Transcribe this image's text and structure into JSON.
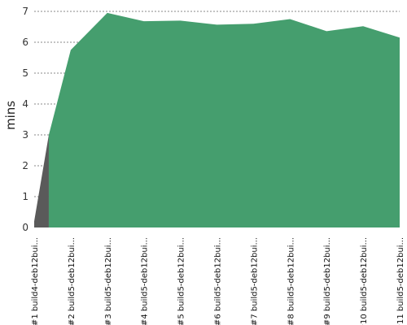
{
  "chart_data": {
    "type": "area",
    "ylabel": "mins",
    "ylim": [
      0,
      7
    ],
    "yticks": [
      "0",
      "1",
      "2",
      "3",
      "4",
      "5",
      "6",
      "7"
    ],
    "grid": true,
    "categories": [
      "#1 build4-deb12bui...",
      "#2 build5-deb12bui...",
      "#3 build5-deb12bui...",
      "#4 build5-deb12bui...",
      "#5 build5-deb12bui...",
      "#6 build5-deb12bui...",
      "#7 build5-deb12bui...",
      "#8 build5-deb12bui...",
      "#9 build5-deb12bui...",
      "#10 build5-deb12bui...",
      "#11 build5-deb12bui..."
    ],
    "values": [
      0.2,
      5.75,
      6.95,
      6.68,
      6.7,
      6.57,
      6.6,
      6.75,
      6.36,
      6.52,
      6.15
    ],
    "colors": {
      "success": "#459e6e",
      "other": "#5a5a5a",
      "grid": "#888888"
    }
  }
}
